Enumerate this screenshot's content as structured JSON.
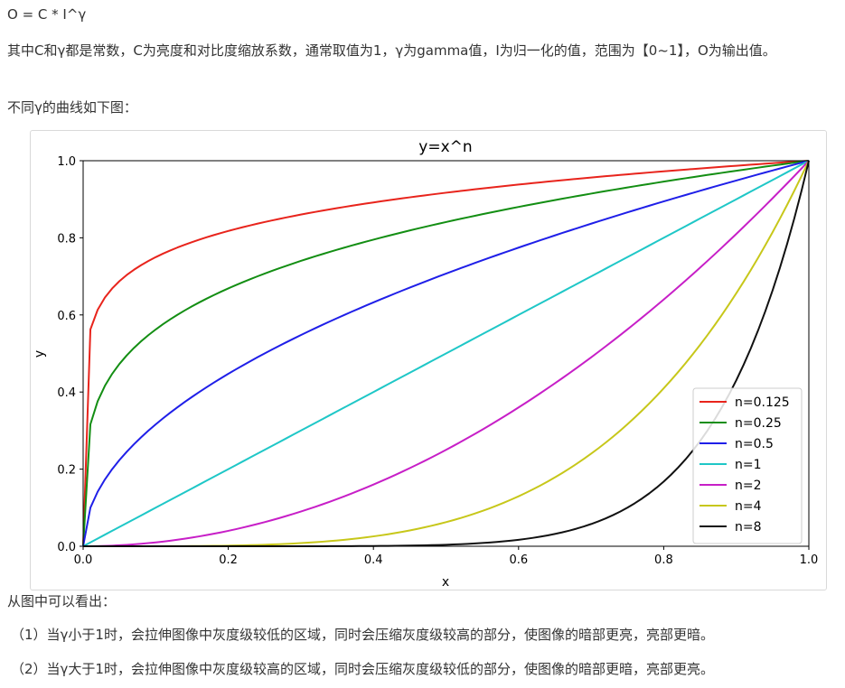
{
  "article": {
    "formula": "O = C * I^γ",
    "description": "其中C和γ都是常数，C为亮度和对比度缩放系数，通常取值为1，γ为gamma值，I为归一化的值，范围为【0~1】，O为输出值。",
    "intro": "不同γ的曲线如下图：",
    "conclusion_intro": "从图中可以看出：",
    "points": [
      "（1）当γ小于1时，会拉伸图像中灰度级较低的区域，同时会压缩灰度级较高的部分，使图像的暗部更亮，亮部更暗。",
      "（2）当γ大于1时，会拉伸图像中灰度级较高的区域，同时会压缩灰度级较低的部分，使图像的暗部更暗，亮部更亮。"
    ]
  },
  "chart_data": {
    "type": "line",
    "title": "y=x^n",
    "xlabel": "x",
    "ylabel": "y",
    "xlim": [
      0,
      1
    ],
    "ylim": [
      0,
      1
    ],
    "x_ticks": [
      "0.0",
      "0.2",
      "0.4",
      "0.6",
      "0.8",
      "1.0"
    ],
    "y_ticks": [
      "0.0",
      "0.2",
      "0.4",
      "0.6",
      "0.8",
      "1.0"
    ],
    "grid": false,
    "legend_position": "lower-right",
    "function": "y = x^n",
    "series": [
      {
        "name": "n=0.125",
        "exponent": 0.125,
        "color": "#e8241c"
      },
      {
        "name": "n=0.25",
        "exponent": 0.25,
        "color": "#138e13"
      },
      {
        "name": "n=0.5",
        "exponent": 0.5,
        "color": "#1f1fe8"
      },
      {
        "name": "n=1",
        "exponent": 1,
        "color": "#1fc7c7"
      },
      {
        "name": "n=2",
        "exponent": 2,
        "color": "#c71fc7"
      },
      {
        "name": "n=4",
        "exponent": 4,
        "color": "#c7c71a"
      },
      {
        "name": "n=8",
        "exponent": 8,
        "color": "#111111"
      }
    ]
  }
}
